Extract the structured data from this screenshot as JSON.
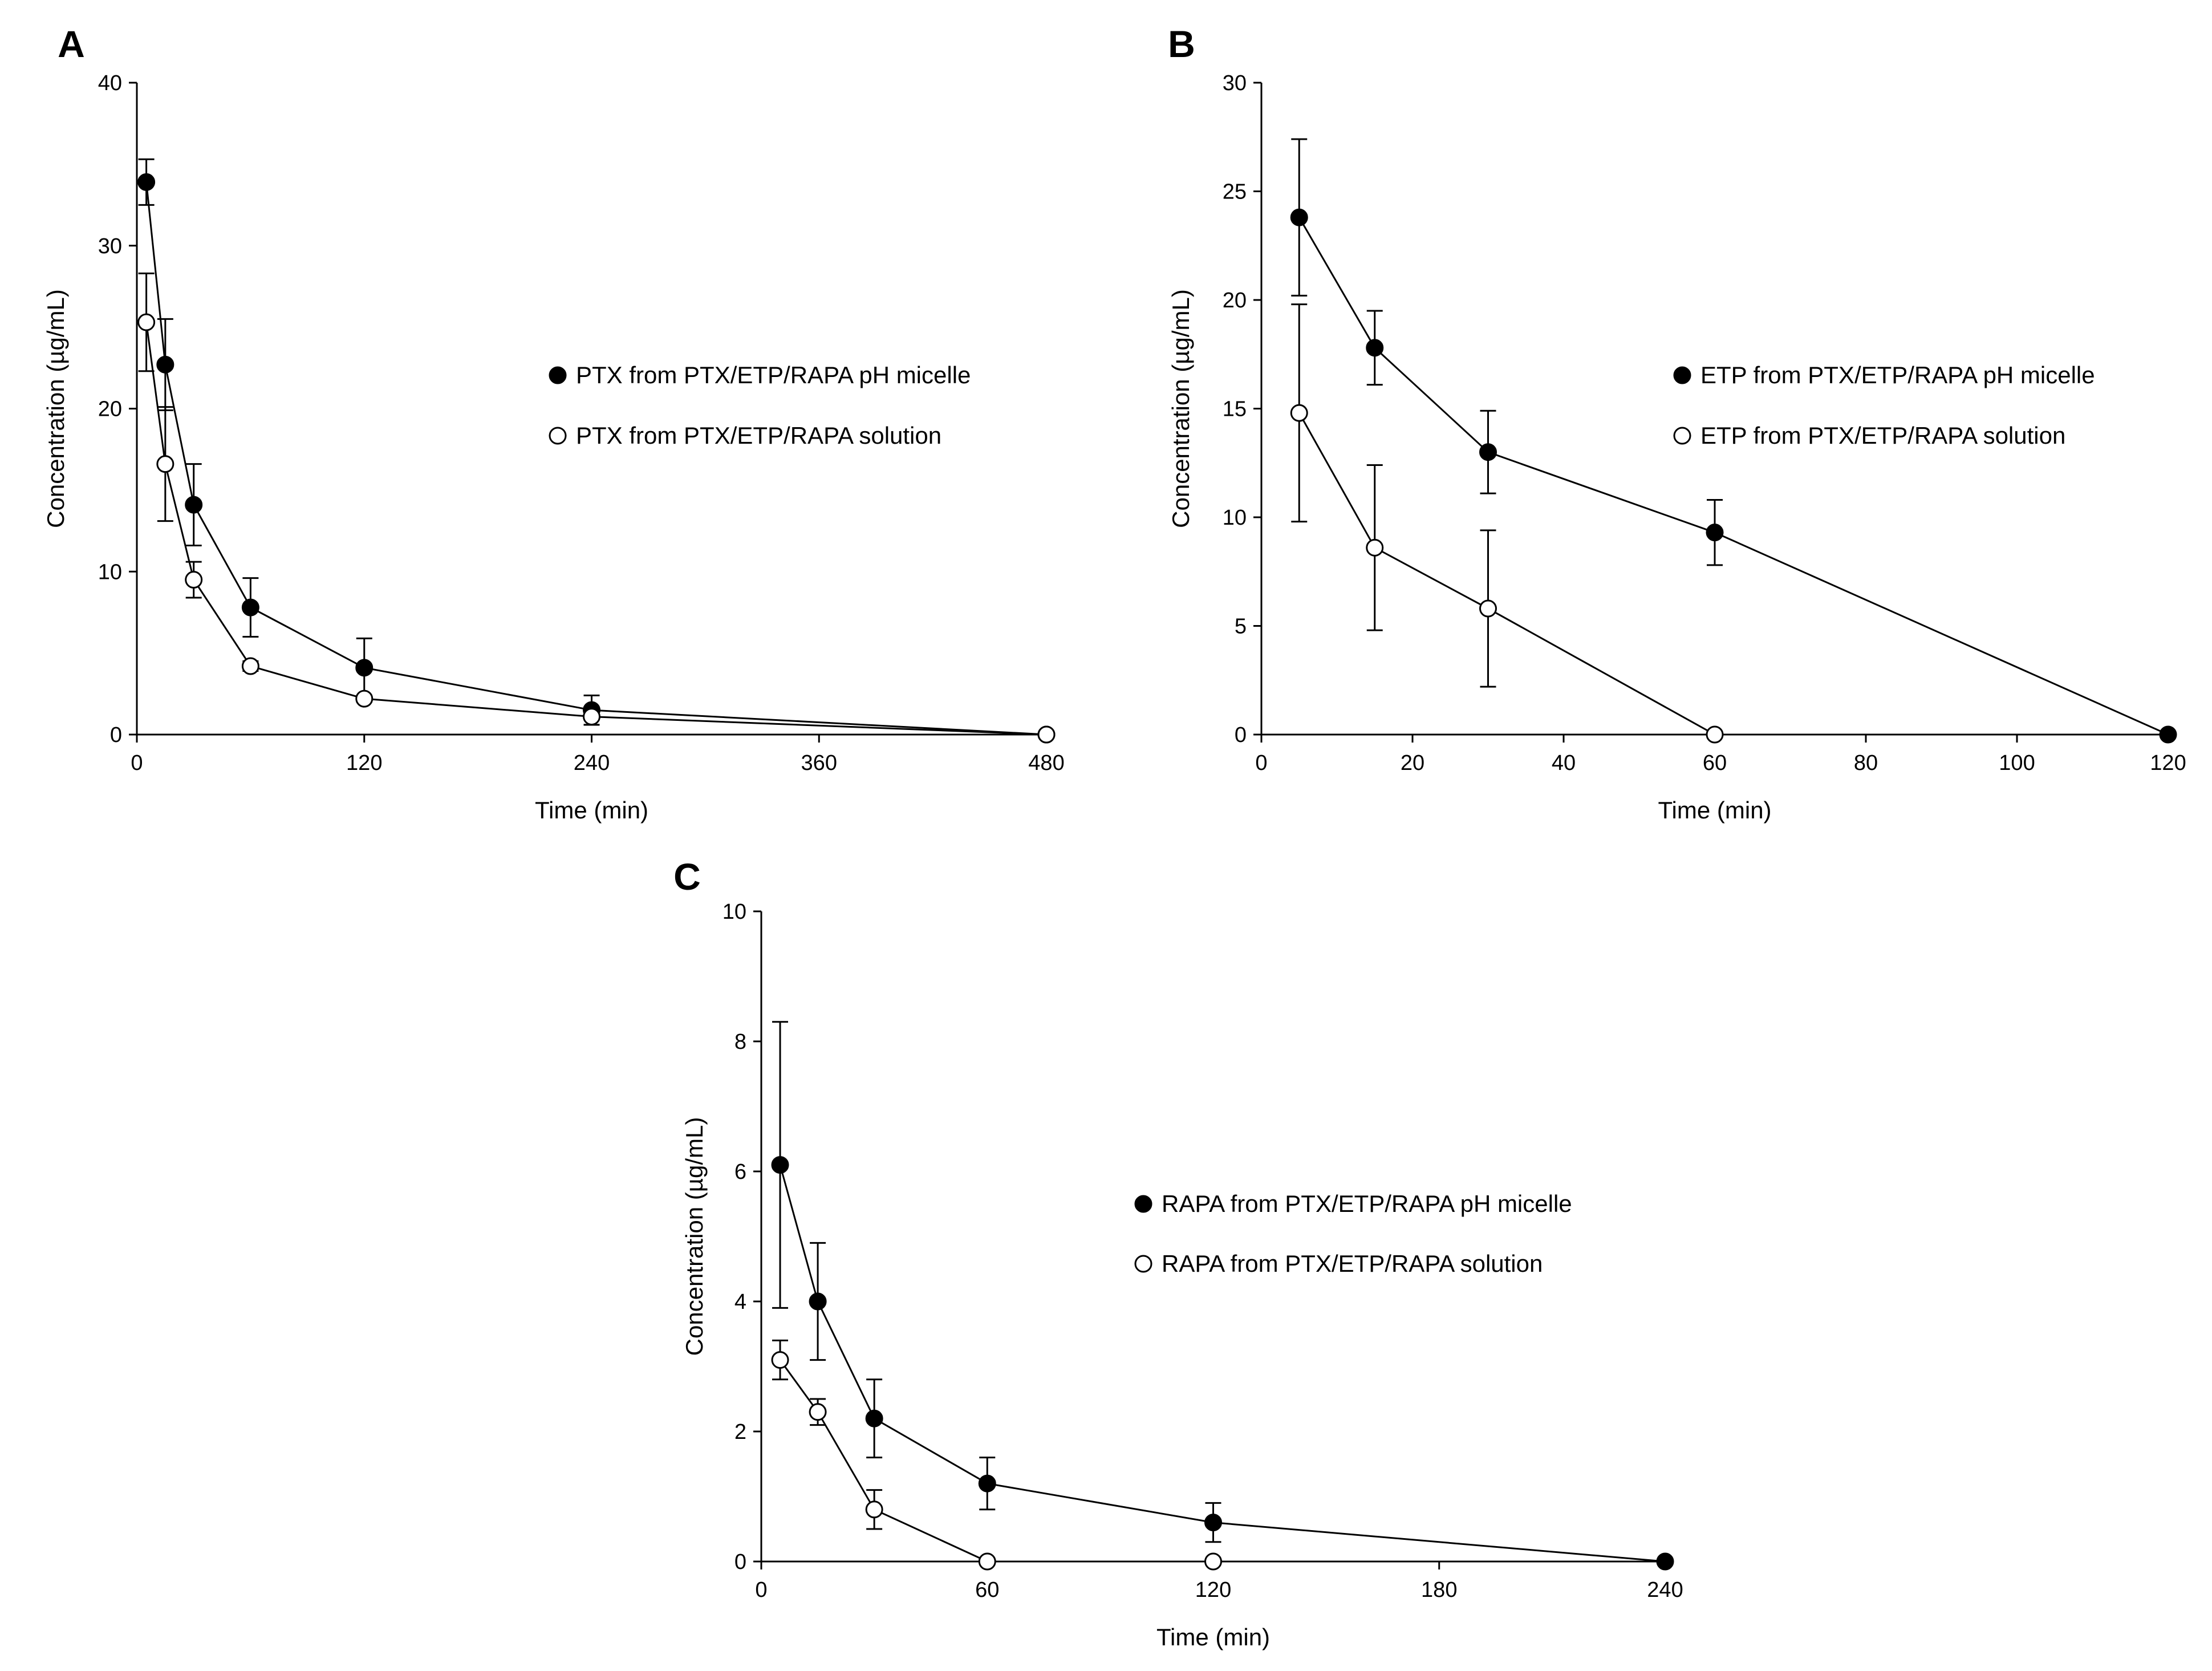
{
  "chart_data": [
    {
      "type": "line",
      "panel_label": "A",
      "xlabel": "Time (min)",
      "ylabel": "Concentration (µg/mL)",
      "xlim": [
        0,
        480
      ],
      "ylim": [
        0,
        40
      ],
      "xticks": [
        0,
        120,
        240,
        360,
        480
      ],
      "yticks": [
        0,
        10,
        20,
        30,
        40
      ],
      "legend_position": "right",
      "series": [
        {
          "name": "PTX from PTX/ETP/RAPA pH micelle",
          "marker": "filled-circle",
          "x": [
            5,
            15,
            30,
            60,
            120,
            240,
            480
          ],
          "y": [
            33.9,
            22.7,
            14.1,
            7.8,
            4.1,
            1.5,
            0
          ],
          "error": [
            1.4,
            2.8,
            2.5,
            1.8,
            1.8,
            0.9,
            0
          ]
        },
        {
          "name": "PTX from PTX/ETP/RAPA solution",
          "marker": "open-circle",
          "x": [
            5,
            15,
            30,
            60,
            120,
            240,
            480
          ],
          "y": [
            25.3,
            16.6,
            9.5,
            4.2,
            2.2,
            1.1,
            0
          ],
          "error": [
            3.0,
            3.5,
            1.1,
            0.3,
            0.2,
            0.5,
            0
          ]
        }
      ]
    },
    {
      "type": "line",
      "panel_label": "B",
      "xlabel": "Time (min)",
      "ylabel": "Concentration (µg/mL)",
      "xlim": [
        0,
        120
      ],
      "ylim": [
        0,
        30
      ],
      "xticks": [
        0,
        20,
        40,
        60,
        80,
        100,
        120
      ],
      "yticks": [
        0,
        5,
        10,
        15,
        20,
        25,
        30
      ],
      "legend_position": "right",
      "series": [
        {
          "name": "ETP from PTX/ETP/RAPA pH micelle",
          "marker": "filled-circle",
          "x": [
            5,
            15,
            30,
            60,
            120
          ],
          "y": [
            23.8,
            17.8,
            13.0,
            9.3,
            0
          ],
          "error": [
            3.6,
            1.7,
            1.9,
            1.5,
            0
          ]
        },
        {
          "name": "ETP from PTX/ETP/RAPA solution",
          "marker": "open-circle",
          "x": [
            5,
            15,
            30,
            60
          ],
          "y": [
            14.8,
            8.6,
            5.8,
            0
          ],
          "error": [
            5.0,
            3.8,
            3.6,
            0
          ]
        }
      ]
    },
    {
      "type": "line",
      "panel_label": "C",
      "xlabel": "Time (min)",
      "ylabel": "Concentration (µg/mL)",
      "xlim": [
        0,
        240
      ],
      "ylim": [
        0,
        10
      ],
      "xticks": [
        0,
        60,
        120,
        180,
        240
      ],
      "yticks": [
        0,
        2,
        4,
        6,
        8,
        10
      ],
      "legend_position": "right",
      "series": [
        {
          "name": "RAPA from PTX/ETP/RAPA pH micelle",
          "marker": "filled-circle",
          "x": [
            5,
            15,
            30,
            60,
            120,
            240
          ],
          "y": [
            6.1,
            4.0,
            2.2,
            1.2,
            0.6,
            0
          ],
          "error": [
            2.2,
            0.9,
            0.6,
            0.4,
            0.3,
            0
          ]
        },
        {
          "name": "RAPA from PTX/ETP/RAPA solution",
          "marker": "open-circle",
          "x": [
            5,
            15,
            30,
            60,
            120
          ],
          "y": [
            3.1,
            2.3,
            0.8,
            0,
            0
          ],
          "error": [
            0.3,
            0.2,
            0.3,
            0,
            0
          ]
        }
      ]
    }
  ]
}
